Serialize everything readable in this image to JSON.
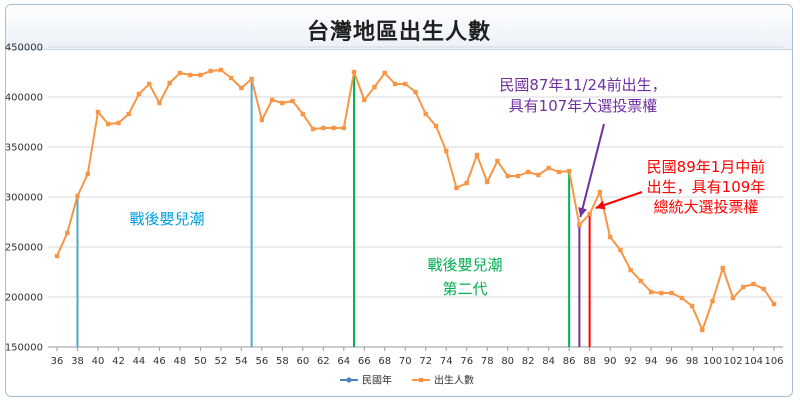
{
  "chart_data": {
    "type": "line",
    "title": "台灣地區出生人數",
    "xlabel": "",
    "ylabel": "",
    "ylim": [
      150000,
      450000
    ],
    "xlim": [
      36,
      106
    ],
    "y_ticks": [
      "150000",
      "200000",
      "250000",
      "300000",
      "350000",
      "400000",
      "450000"
    ],
    "x_ticks": [
      "36",
      "38",
      "40",
      "42",
      "44",
      "46",
      "48",
      "50",
      "52",
      "54",
      "56",
      "58",
      "60",
      "62",
      "64",
      "66",
      "68",
      "70",
      "72",
      "74",
      "76",
      "78",
      "80",
      "82",
      "84",
      "86",
      "88",
      "90",
      "92",
      "94",
      "96",
      "98",
      "100",
      "102",
      "104",
      "106"
    ],
    "grid": "horizontal",
    "legend_position": "bottom",
    "legend": [
      "民國年",
      "出生人數"
    ],
    "series": [
      {
        "name": "出生人數",
        "color": "#f79646",
        "x": [
          36,
          37,
          38,
          39,
          40,
          41,
          42,
          43,
          44,
          45,
          46,
          47,
          48,
          49,
          50,
          51,
          52,
          53,
          54,
          55,
          56,
          57,
          58,
          59,
          60,
          61,
          62,
          63,
          64,
          65,
          66,
          67,
          68,
          69,
          70,
          71,
          72,
          73,
          74,
          75,
          76,
          77,
          78,
          79,
          80,
          81,
          82,
          83,
          84,
          85,
          86,
          87,
          88,
          89,
          90,
          91,
          92,
          93,
          94,
          95,
          96,
          97,
          98,
          99,
          100,
          101,
          102,
          103,
          104,
          105,
          106
        ],
        "values": [
          241000,
          264000,
          301000,
          323000,
          385000,
          373000,
          374000,
          383000,
          403000,
          413000,
          394000,
          414000,
          424000,
          422000,
          422000,
          426000,
          427000,
          419000,
          409000,
          418000,
          377000,
          397000,
          394000,
          396000,
          383000,
          368000,
          369000,
          369000,
          369000,
          425000,
          397000,
          410000,
          424000,
          413000,
          413000,
          405000,
          383000,
          371000,
          346000,
          309000,
          314000,
          342000,
          315000,
          336000,
          321000,
          321000,
          325000,
          322000,
          329000,
          325000,
          326000,
          272000,
          283000,
          305000,
          260000,
          247000,
          227000,
          216000,
          205000,
          204000,
          204000,
          199000,
          191000,
          167000,
          196000,
          229000,
          199000,
          210000,
          213000,
          208000,
          193000
        ]
      }
    ],
    "markers": [
      {
        "name": "民國年",
        "color": "#4bacc6",
        "x": [
          38,
          55
        ]
      },
      {
        "name": "民國年",
        "color": "#00b050",
        "x": [
          65,
          86
        ]
      },
      {
        "name": "民國年",
        "color": "#7030a0",
        "x": [
          87
        ]
      },
      {
        "name": "民國年",
        "color": "#ff0000",
        "x": [
          88
        ]
      }
    ],
    "annotations": [
      {
        "lines": [
          "戰後嬰兒潮"
        ],
        "color": "#00a0e0"
      },
      {
        "lines": [
          "戰後嬰兒潮",
          "第二代"
        ],
        "color": "#00b050"
      },
      {
        "lines": [
          "民國87年11/24前出生，",
          "具有107年大選投票權"
        ],
        "color": "#7030a0"
      },
      {
        "lines": [
          "民國89年1月中前",
          "出生，具有109年",
          "總統大選投票權"
        ],
        "color": "#ff0000"
      }
    ]
  }
}
